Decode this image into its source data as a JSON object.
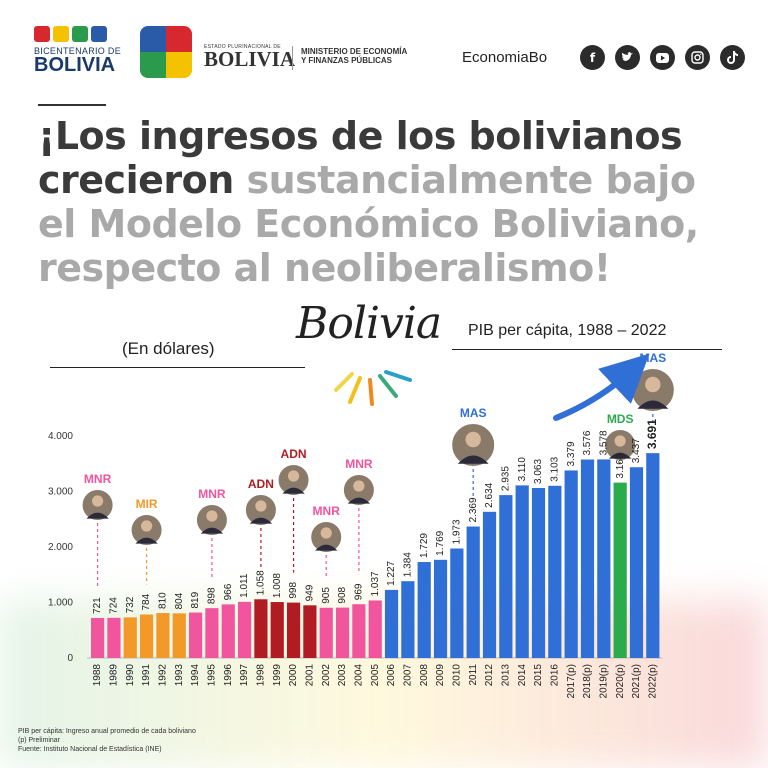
{
  "header": {
    "logo_bicentenario": {
      "line1": "BICENTENARIO DE",
      "line2": "BOLIVIA"
    },
    "logo_estado": {
      "line1": "ESTADO PLURINACIONAL DE",
      "line2": "BOLIVIA"
    },
    "ministry": {
      "line1": "MINISTERIO DE ECONOMÍA",
      "line2": "Y FINANZAS PÚBLICAS"
    },
    "handle": "EconomiaBo",
    "social_icons": [
      "facebook-icon",
      "twitter-icon",
      "youtube-icon",
      "instagram-icon",
      "tiktok-icon"
    ]
  },
  "headline": {
    "dark_part": "¡Los ingresos de los bolivianos crecieron",
    "light_part": "sustancialmente bajo el Modelo Económico Boliviano, respecto al neoliberalismo!"
  },
  "script_word": "Bolivia",
  "units_label": "(En dólares)",
  "colors": {
    "MNR": "#f0559e",
    "MIR": "#f3992a",
    "ADN": "#b01c22",
    "MAS": "#2f6fd6",
    "MDS": "#2cab4c",
    "headline_dark": "#3a3a3a",
    "headline_light": "#a9a9a9"
  },
  "chart_data": {
    "type": "bar",
    "title": "PIB per cápita, 1988 – 2022",
    "ylim": [
      0,
      4000
    ],
    "yticks": [
      "0",
      "1.000",
      "2.000",
      "3.000",
      "4.000"
    ],
    "grid": false,
    "categories": [
      "1988",
      "1989",
      "1990",
      "1991",
      "1992",
      "1993",
      "1994",
      "1995",
      "1996",
      "1997",
      "1998",
      "1999",
      "2000",
      "2001",
      "2002",
      "2003",
      "2004",
      "2005",
      "2006",
      "2007",
      "2008",
      "2009",
      "2010",
      "2011",
      "2012",
      "2013",
      "2014",
      "2015",
      "2016",
      "2017(p)",
      "2018(p)",
      "2019(p)",
      "2020(p)",
      "2021(p)",
      "2022(p)"
    ],
    "values": [
      721,
      724,
      732,
      784,
      810,
      804,
      819,
      898,
      966,
      1011,
      1058,
      1008,
      998,
      949,
      905,
      908,
      969,
      1037,
      1227,
      1384,
      1729,
      1769,
      1973,
      2369,
      2634,
      2935,
      3110,
      3063,
      3103,
      3379,
      3576,
      3578,
      3160,
      3437,
      3691
    ],
    "value_labels": [
      "721",
      "724",
      "732",
      "784",
      "810",
      "804",
      "819",
      "898",
      "966",
      "1.011",
      "1.058",
      "1.008",
      "998",
      "949",
      "905",
      "908",
      "969",
      "1.037",
      "1.227",
      "1.384",
      "1.729",
      "1.769",
      "1.973",
      "2.369",
      "2.634",
      "2.935",
      "3.110",
      "3.063",
      "3.103",
      "3.379",
      "3.576",
      "3.578",
      "3.160",
      "3.437",
      "3.691"
    ],
    "party": [
      "MNR",
      "MNR",
      "MIR",
      "MIR",
      "MIR",
      "MIR",
      "MNR",
      "MNR",
      "MNR",
      "MNR",
      "ADN",
      "ADN",
      "ADN",
      "ADN",
      "MNR",
      "MNR",
      "MNR",
      "MNR",
      "MAS",
      "MAS",
      "MAS",
      "MAS",
      "MAS",
      "MAS",
      "MAS",
      "MAS",
      "MAS",
      "MAS",
      "MAS",
      "MAS",
      "MAS",
      "MAS",
      "MDS",
      "MAS",
      "MAS"
    ],
    "government_markers": [
      {
        "label": "MNR",
        "bar_index": 0
      },
      {
        "label": "MIR",
        "bar_index": 3
      },
      {
        "label": "MNR",
        "bar_index": 7
      },
      {
        "label": "ADN",
        "bar_index": 10
      },
      {
        "label": "ADN",
        "bar_index": 12
      },
      {
        "label": "MNR",
        "bar_index": 14
      },
      {
        "label": "MNR",
        "bar_index": 16
      },
      {
        "label": "MAS",
        "bar_index": 23
      },
      {
        "label": "MDS",
        "bar_index": 32
      },
      {
        "label": "MAS",
        "bar_index": 34
      }
    ]
  },
  "footnotes": [
    "PIB per cápita: Ingreso anual promedio de cada boliviano",
    "(p) Preliminar",
    "Fuente: Instituto Nacional de Estadística (INE)"
  ]
}
